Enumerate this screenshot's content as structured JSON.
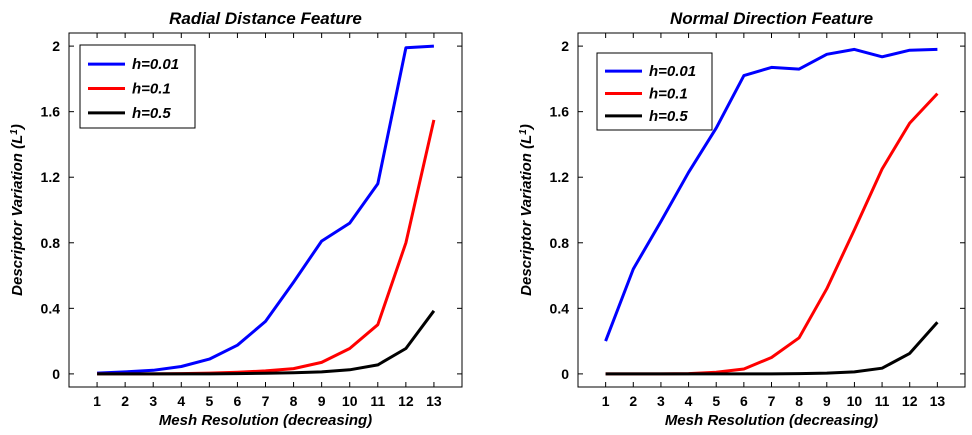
{
  "chart_data": [
    {
      "type": "line",
      "title": "Radial Distance  Feature",
      "xlabel": "Mesh Resolution (decreasing)",
      "ylabel": "Descriptor Variation (L",
      "ylabel_sup": "1",
      "ylabel_end": ")",
      "x": [
        1,
        2,
        3,
        4,
        5,
        6,
        7,
        8,
        9,
        10,
        11,
        12,
        13
      ],
      "xlim": [
        0,
        14
      ],
      "ylim": [
        -0.08,
        2.08
      ],
      "xticks": [
        "1",
        "2",
        "3",
        "4",
        "5",
        "6",
        "7",
        "8",
        "9",
        "10",
        "11",
        "12",
        "13"
      ],
      "yticks": [
        "0",
        "0.4",
        "0.8",
        "1.2",
        "1.6",
        "2"
      ],
      "legend_position": "top-left",
      "series": [
        {
          "name": "h=0.01",
          "color": "#0000ff",
          "values": [
            0.005,
            0.012,
            0.022,
            0.045,
            0.09,
            0.175,
            0.32,
            0.56,
            0.81,
            0.92,
            1.16,
            1.99,
            2.0
          ]
        },
        {
          "name": "h=0.1",
          "color": "#ff0000",
          "values": [
            0,
            0,
            0,
            0.002,
            0.005,
            0.01,
            0.018,
            0.032,
            0.07,
            0.155,
            0.3,
            0.8,
            1.55
          ]
        },
        {
          "name": "h=0.5",
          "color": "#000000",
          "values": [
            0,
            0,
            0,
            0,
            0,
            0.002,
            0.004,
            0.007,
            0.012,
            0.025,
            0.055,
            0.155,
            0.385
          ]
        }
      ]
    },
    {
      "type": "line",
      "title": "Normal Direction Feature",
      "xlabel": "Mesh Resolution (decreasing)",
      "ylabel": "Descriptor Variation (L",
      "ylabel_sup": "1",
      "ylabel_end": ")",
      "x": [
        1,
        2,
        3,
        4,
        5,
        6,
        7,
        8,
        9,
        10,
        11,
        12,
        13
      ],
      "xlim": [
        0,
        14
      ],
      "ylim": [
        -0.08,
        2.08
      ],
      "xticks": [
        "1",
        "2",
        "3",
        "4",
        "5",
        "6",
        "7",
        "8",
        "9",
        "10",
        "11",
        "12",
        "13"
      ],
      "yticks": [
        "0",
        "0.4",
        "0.8",
        "1.2",
        "1.6",
        "2"
      ],
      "legend_position": "top-left",
      "series": [
        {
          "name": "h=0.01",
          "color": "#0000ff",
          "values": [
            0.2,
            0.64,
            0.93,
            1.23,
            1.5,
            1.82,
            1.87,
            1.86,
            1.95,
            1.98,
            1.935,
            1.975,
            1.98
          ]
        },
        {
          "name": "h=0.1",
          "color": "#ff0000",
          "values": [
            0,
            0,
            0,
            0.002,
            0.01,
            0.03,
            0.1,
            0.22,
            0.52,
            0.88,
            1.25,
            1.53,
            1.71
          ]
        },
        {
          "name": "h=0.5",
          "color": "#000000",
          "values": [
            0,
            0,
            0,
            0,
            0,
            0,
            0,
            0.002,
            0.005,
            0.012,
            0.035,
            0.125,
            0.315
          ]
        }
      ]
    }
  ]
}
